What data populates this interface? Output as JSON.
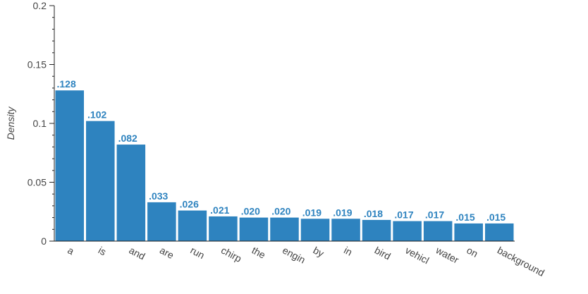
{
  "chart_data": {
    "type": "bar",
    "title": "",
    "xlabel": "",
    "ylabel": "Density",
    "ylim": [
      0,
      0.2
    ],
    "yticks": [
      {
        "value": 0,
        "label": "0"
      },
      {
        "value": 0.05,
        "label": "0.05"
      },
      {
        "value": 0.1,
        "label": "0.1"
      },
      {
        "value": 0.15,
        "label": "0.15"
      },
      {
        "value": 0.2,
        "label": "0.2"
      }
    ],
    "minor_tick_step": 0.01,
    "grid": false,
    "categories": [
      "a",
      "is",
      "and",
      "are",
      "run",
      "chirp",
      "the",
      "engin",
      "by",
      "in",
      "bird",
      "vehicl",
      "water",
      "on",
      "background"
    ],
    "values": [
      0.128,
      0.102,
      0.082,
      0.033,
      0.026,
      0.021,
      0.02,
      0.02,
      0.019,
      0.019,
      0.018,
      0.017,
      0.017,
      0.015,
      0.015
    ],
    "value_labels": [
      ".128",
      ".102",
      ".082",
      ".033",
      ".026",
      ".021",
      ".020",
      ".020",
      ".019",
      ".019",
      ".018",
      ".017",
      ".017",
      ".015",
      ".015"
    ],
    "bar_color": "#2e83bf",
    "label_color": "#2e83bf"
  }
}
